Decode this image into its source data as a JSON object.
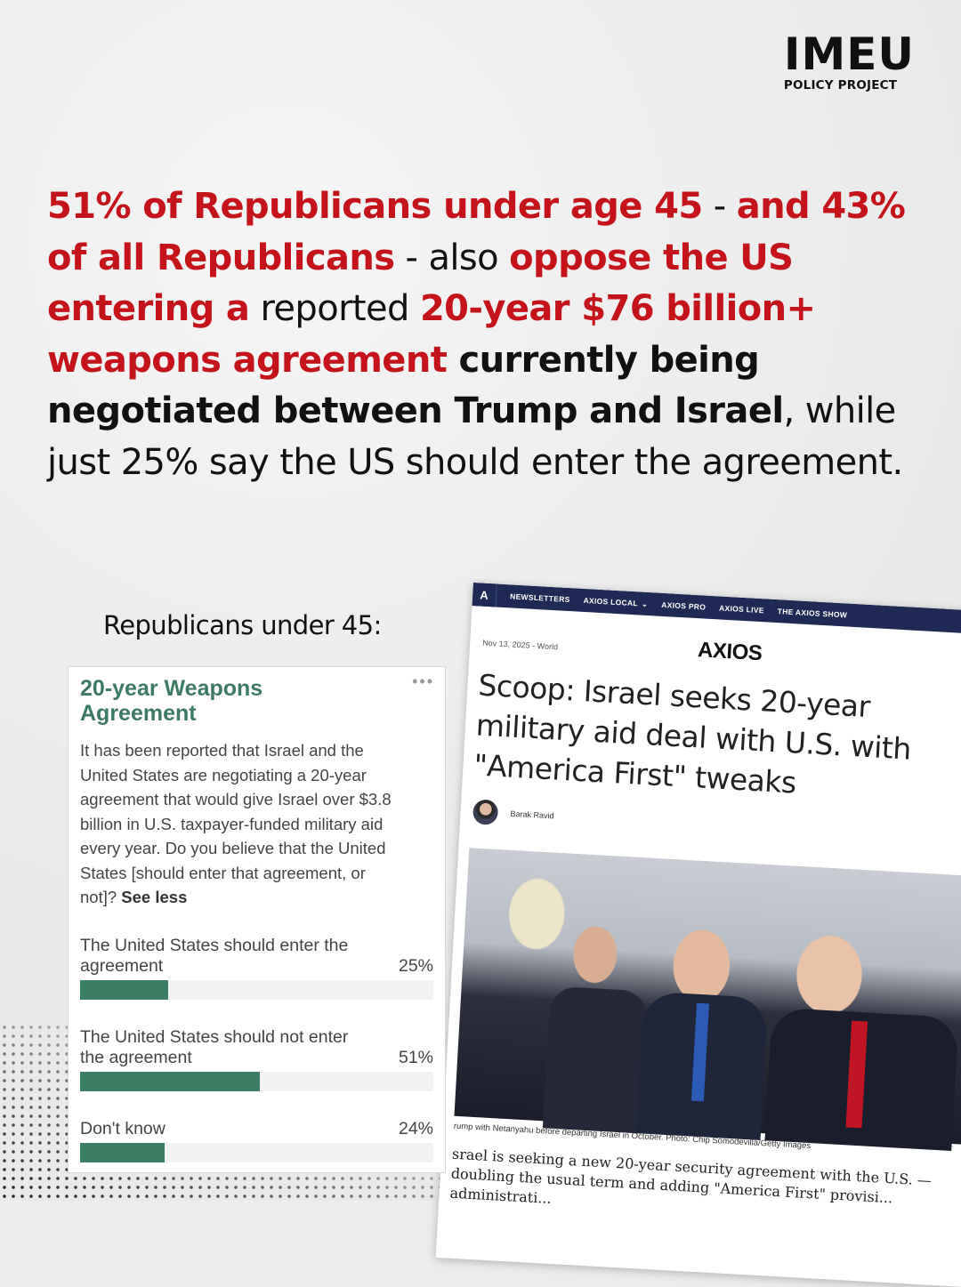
{
  "logo": {
    "name": "IMEU",
    "subtitle": "POLICY PROJECT"
  },
  "headline": {
    "p1": "51% of Republicans under age 45",
    "p2": " - ",
    "p3": "and 43% of all Republicans",
    "p4": " - also ",
    "p5": "oppose the US entering a",
    "p6": " reported ",
    "p7": "20-year $76 billion+ weapons agreement",
    "p8": " currently being negotiated between Trump and Israel",
    "p9": ", while just 25% say the US should enter the agreement."
  },
  "subgroup_label": "Republicans under 45:",
  "poll": {
    "title": "20-year Weapons Agreement",
    "menu": "•••",
    "question": "It has been reported that Israel and the United States are negotiating a 20-year agreement that would give Israel over $3.8 billion in U.S. taxpayer-funded military aid every year. Do you believe that the United States [should enter that agreement, or not]?",
    "see_less": "See less",
    "options": [
      {
        "label": "The United States should enter the agreement",
        "pct_text": "25%",
        "value": 25
      },
      {
        "label": "The United States should not enter the agreement",
        "pct_text": "51%",
        "value": 51
      },
      {
        "label": "Don't know",
        "pct_text": "24%",
        "value": 24
      }
    ],
    "colors": {
      "bar": "#3a7f64",
      "title": "#3d7a62"
    }
  },
  "article": {
    "nav": [
      "NEWSLETTERS",
      "AXIOS LOCAL",
      "AXIOS PRO",
      "AXIOS LIVE",
      "THE AXIOS SHOW"
    ],
    "nav_mark": "A",
    "logo": "AXIOS",
    "date": "Nov 13, 2025 - World",
    "title": "Scoop: Israel seeks 20-year military aid deal with U.S. with \"America First\" tweaks",
    "author": "Barak Ravid",
    "caption": "rump with Netanyahu before departing Israel in October. Photo: Chip Somodevilla/Getty Images",
    "body": "srael is seeking a new 20-year security agreement with the U.S. — doubling the usual term and adding \"America First\" provisi... administrati..."
  },
  "colors": {
    "accent_red": "#c4141a",
    "axios_nav": "#1e2a55"
  }
}
